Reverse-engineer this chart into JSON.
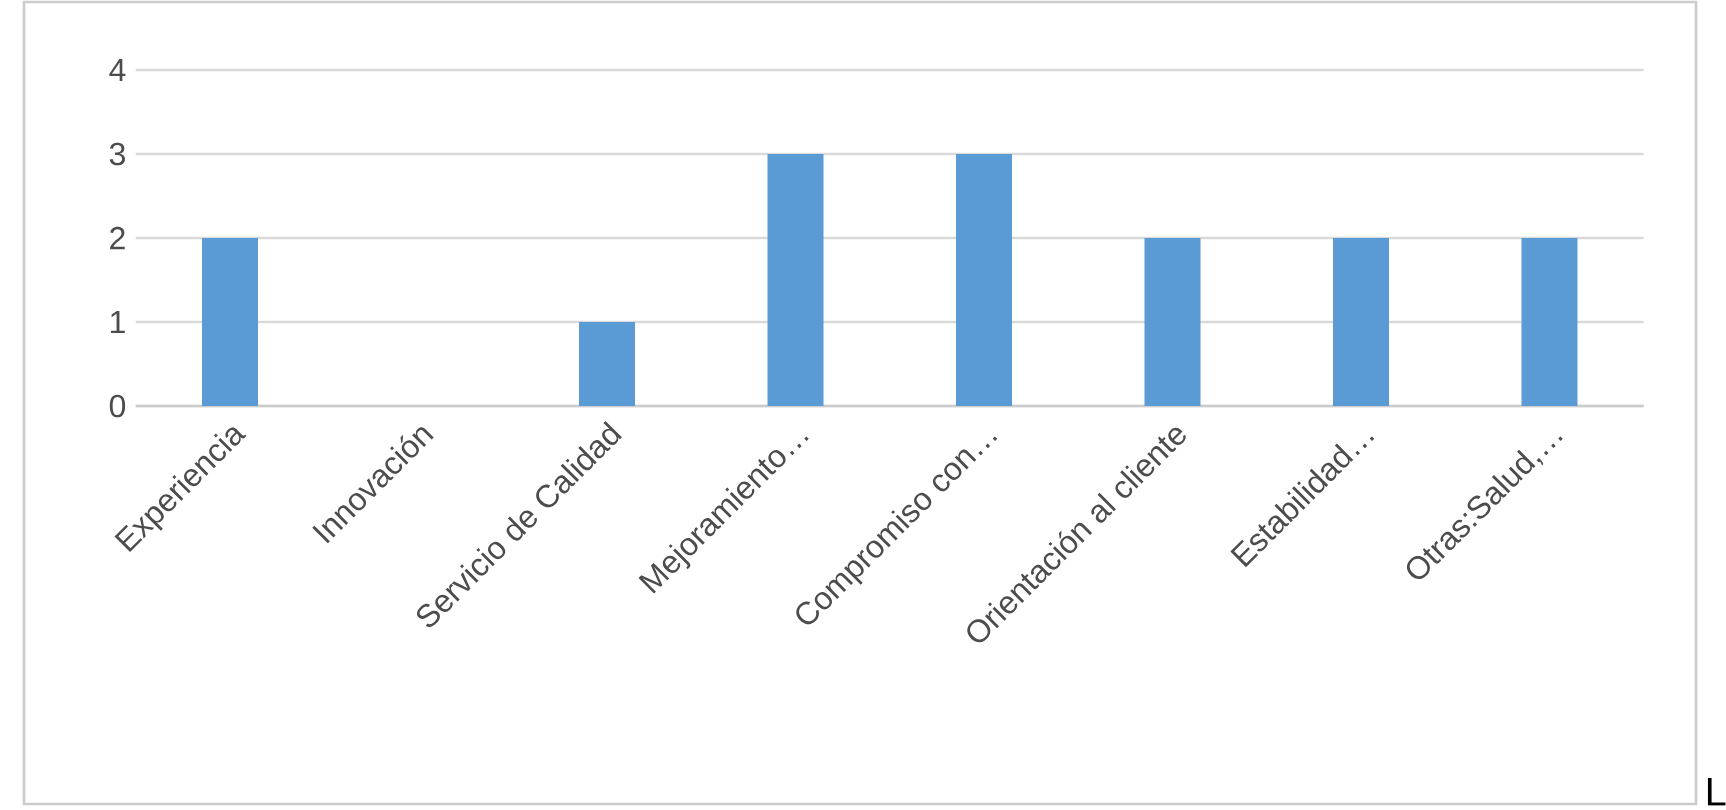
{
  "chart_data": {
    "type": "bar",
    "categories": [
      "Experiencia",
      "Innovación",
      "Servicio de Calidad",
      "Mejoramiento…",
      "Compromiso con…",
      "Orientación al cliente",
      "Estabilidad…",
      "Otras:Salud,…"
    ],
    "values": [
      2,
      0,
      1,
      3,
      3,
      2,
      2,
      2
    ],
    "color": "#5b9bd5",
    "ylim": [
      0,
      4
    ],
    "yticks": [
      0,
      1,
      2,
      3,
      4
    ],
    "grid": "y",
    "annotations": [
      "L"
    ]
  }
}
